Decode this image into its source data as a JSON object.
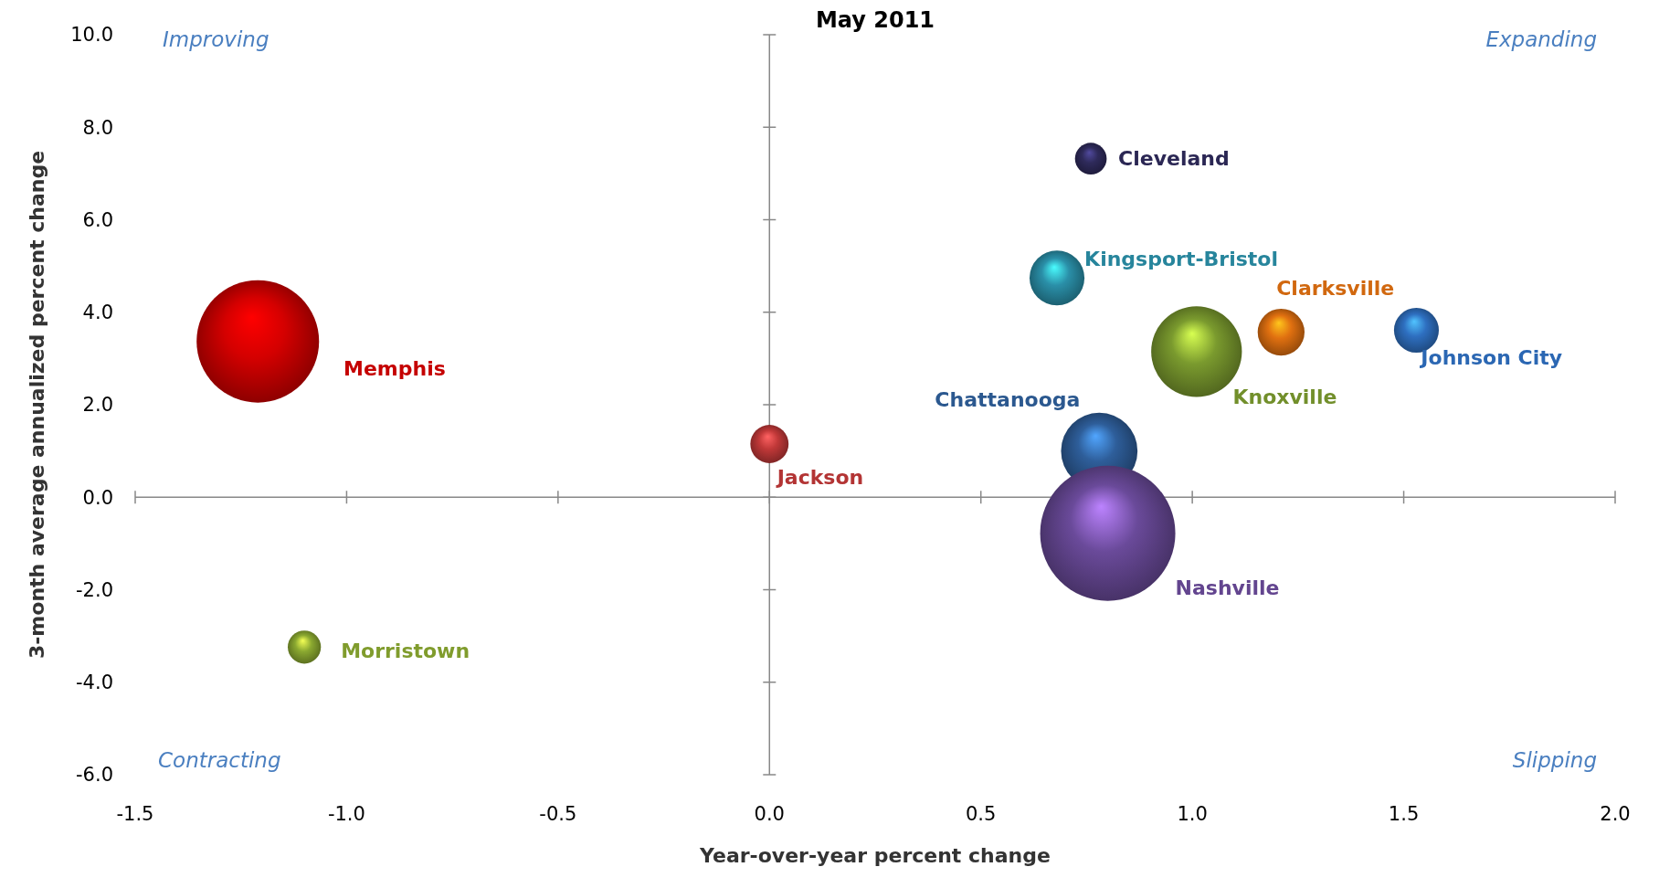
{
  "chart_data": {
    "type": "bubble",
    "title": "May 2011",
    "xlabel": "Year-over-year percent change",
    "ylabel": "3-month average annualized percent change",
    "xlim": [
      -1.5,
      2.0
    ],
    "xticks": [
      {
        "value": -1.5,
        "label": "-1.5"
      },
      {
        "value": -1.0,
        "label": "-1.0"
      },
      {
        "value": -0.5,
        "label": "-0.5"
      },
      {
        "value": 0,
        "label": "0.0"
      },
      {
        "value": 0.5,
        "label": "0.5"
      },
      {
        "value": 1.0,
        "label": "1.0"
      },
      {
        "value": 1.5,
        "label": "1.5"
      },
      {
        "value": 2.0,
        "label": "2.0"
      }
    ],
    "ylim": [
      -6,
      10
    ],
    "yticks": [
      {
        "value": -6,
        "label": "-6.0"
      },
      {
        "value": -4,
        "label": "-4.0"
      },
      {
        "value": -2,
        "label": "-2.0"
      },
      {
        "value": 0,
        "label": "0.0"
      },
      {
        "value": 2,
        "label": "2.0"
      },
      {
        "value": 4,
        "label": "4.0"
      },
      {
        "value": 6,
        "label": "6.0"
      },
      {
        "value": 8,
        "label": "8.0"
      },
      {
        "value": 10,
        "label": "10.0"
      }
    ],
    "annotations": [
      "Improving",
      "Expanding",
      "Contracting",
      "Slipping"
    ],
    "series": [
      {
        "name": "Memphis",
        "color": "#d40000",
        "x": [
          -1.21
        ],
        "values": [
          3.37
        ],
        "sizes": [
          0.82
        ]
      },
      {
        "name": "Cleveland",
        "color": "#2e2a5a",
        "x": [
          0.76
        ],
        "values": [
          7.32
        ],
        "sizes": [
          0.055
        ]
      },
      {
        "name": "Kingsport-Bristol",
        "color": "#2a8fa8",
        "x": [
          0.68
        ],
        "values": [
          4.74
        ],
        "sizes": [
          0.165
        ]
      },
      {
        "name": "Clarksville",
        "color": "#e07010",
        "x": [
          1.21
        ],
        "values": [
          3.57
        ],
        "sizes": [
          0.12
        ]
      },
      {
        "name": "Johnson City",
        "color": "#2e6fc0",
        "x": [
          1.53
        ],
        "values": [
          3.61
        ],
        "sizes": [
          0.11
        ]
      },
      {
        "name": "Knoxville",
        "color": "#7a9a2e",
        "x": [
          1.01
        ],
        "values": [
          3.15
        ],
        "sizes": [
          0.45
        ]
      },
      {
        "name": "Chattanooga",
        "color": "#2e5e9a",
        "x": [
          0.78
        ],
        "values": [
          1.0
        ],
        "sizes": [
          0.32
        ]
      },
      {
        "name": "Nashville",
        "color": "#6a4a9a",
        "x": [
          0.8
        ],
        "values": [
          -0.78
        ],
        "sizes": [
          1
        ]
      },
      {
        "name": "Jackson",
        "color": "#c03838",
        "x": [
          0.0
        ],
        "values": [
          1.15
        ],
        "sizes": [
          0.08
        ]
      },
      {
        "name": "Morristown",
        "color": "#8aa830",
        "x": [
          -1.1
        ],
        "values": [
          -3.24
        ],
        "sizes": [
          0.06
        ]
      }
    ]
  }
}
